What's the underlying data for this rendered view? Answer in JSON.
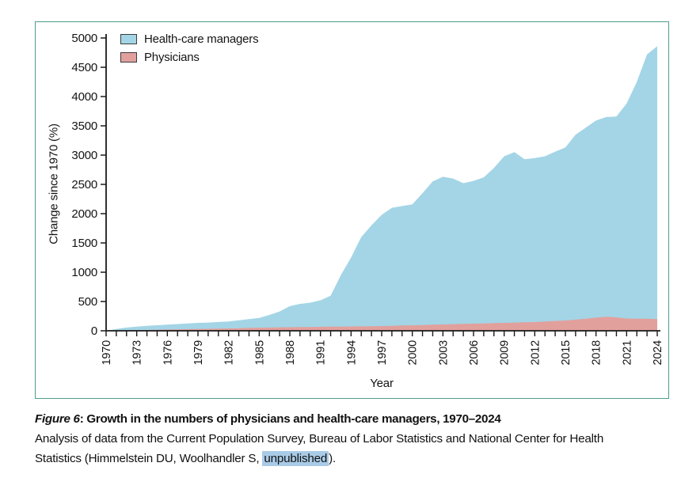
{
  "figure": {
    "caption_label": "Figure 6",
    "caption_colon": ": ",
    "caption_title": "Growth in the numbers of physicians and health-care managers, 1970–2024",
    "caption_body_line1": "Analysis of data from the Current Population Survey, Bureau of Labor Statistics and National Center for Health",
    "caption_body_line2_pre": "Statistics (Himmelstein DU, Woolhandler S, ",
    "caption_body_highlight": "unpublished",
    "caption_body_line2_post": ")."
  },
  "colors": {
    "box_border": "#4d9c8e",
    "managers_fill": "#a3d5e6",
    "physicians_fill": "#e2a09d",
    "axis": "#1a1a1a",
    "highlight": "#a9cbe7"
  },
  "chart_data": {
    "type": "area",
    "title": "",
    "xlabel": "Year",
    "ylabel": "Change since 1970 (%)",
    "ylim": [
      0,
      5000
    ],
    "ytick_step": 500,
    "xtick_label_every": 3,
    "grid": false,
    "legend_position": "top-left",
    "x": [
      1970,
      1971,
      1972,
      1973,
      1974,
      1975,
      1976,
      1977,
      1978,
      1979,
      1980,
      1981,
      1982,
      1983,
      1984,
      1985,
      1986,
      1987,
      1988,
      1989,
      1990,
      1991,
      1992,
      1993,
      1994,
      1995,
      1996,
      1997,
      1998,
      1999,
      2000,
      2001,
      2002,
      2003,
      2004,
      2005,
      2006,
      2007,
      2008,
      2009,
      2010,
      2011,
      2012,
      2013,
      2014,
      2015,
      2016,
      2017,
      2018,
      2019,
      2020,
      2021,
      2022,
      2023,
      2024
    ],
    "series": [
      {
        "name": "Health-care managers",
        "color": "#a3d5e6",
        "values": [
          0,
          30,
          55,
          70,
          85,
          95,
          105,
          115,
          125,
          135,
          140,
          150,
          160,
          180,
          200,
          220,
          270,
          330,
          420,
          460,
          480,
          520,
          600,
          950,
          1250,
          1600,
          1800,
          1980,
          2100,
          2130,
          2160,
          2350,
          2550,
          2630,
          2600,
          2520,
          2560,
          2620,
          2780,
          2980,
          3050,
          2930,
          2950,
          2980,
          3060,
          3130,
          3350,
          3470,
          3590,
          3650,
          3660,
          3880,
          4250,
          4720,
          4860
        ]
      },
      {
        "name": "Physicians",
        "color": "#e2a09d",
        "values": [
          0,
          3,
          7,
          10,
          14,
          17,
          21,
          24,
          28,
          31,
          34,
          38,
          41,
          45,
          50,
          54,
          56,
          59,
          61,
          63,
          65,
          68,
          70,
          72,
          74,
          76,
          78,
          81,
          85,
          90,
          95,
          99,
          104,
          108,
          113,
          117,
          122,
          126,
          131,
          135,
          140,
          144,
          149,
          158,
          167,
          176,
          190,
          205,
          225,
          240,
          230,
          210,
          205,
          205,
          200
        ]
      }
    ]
  }
}
